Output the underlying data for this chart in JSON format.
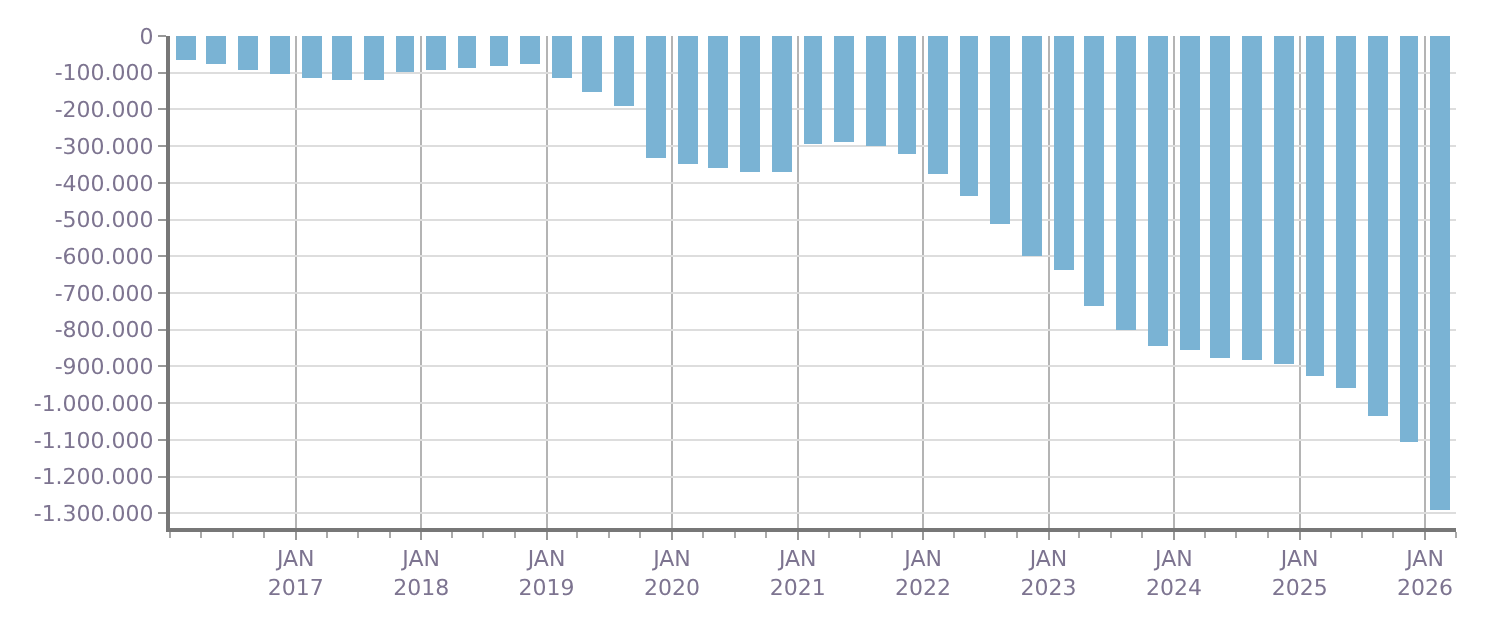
{
  "chart_data": {
    "type": "bar",
    "color": "#7ab3d4",
    "grid": true,
    "x": [
      "2016-02-15",
      "2016-05-15",
      "2016-08-15",
      "2016-11-15",
      "2017-02-15",
      "2017-05-15",
      "2017-08-15",
      "2017-11-15",
      "2018-02-15",
      "2018-05-15",
      "2018-08-15",
      "2018-11-15",
      "2019-02-15",
      "2019-05-15",
      "2019-08-15",
      "2019-11-15",
      "2020-02-15",
      "2020-05-15",
      "2020-08-15",
      "2020-11-15",
      "2021-02-15",
      "2021-05-15",
      "2021-08-15",
      "2021-11-15",
      "2022-02-15",
      "2022-05-15",
      "2022-08-15",
      "2022-11-15",
      "2023-02-15",
      "2023-05-15",
      "2023-08-15",
      "2023-11-15",
      "2024-02-15",
      "2024-05-15",
      "2024-08-15",
      "2024-11-15",
      "2025-02-15",
      "2025-05-15",
      "2025-08-15",
      "2025-11-15",
      "2026-02-15"
    ],
    "values": [
      -63000,
      -75000,
      -90000,
      -103000,
      -115000,
      -118000,
      -118000,
      -100000,
      -90000,
      -85000,
      -80000,
      -75000,
      -115000,
      -150000,
      -190000,
      -330000,
      -350000,
      -360000,
      -370000,
      -370000,
      -295000,
      -290000,
      -300000,
      -320000,
      -375000,
      -435000,
      -510000,
      -600000,
      -640000,
      -733000,
      -800000,
      -845000,
      -855000,
      -875000,
      -885000,
      -895000,
      -925000,
      -960000,
      -1035000,
      -1105000,
      -1290000
    ],
    "xlim": [
      "2016-01-01",
      "2026-04-01"
    ],
    "xticks": [
      {
        "value": "2017-01-01",
        "label": "JAN\n2017"
      },
      {
        "value": "2018-01-01",
        "label": "JAN\n2018"
      },
      {
        "value": "2019-01-01",
        "label": "JAN\n2019"
      },
      {
        "value": "2020-01-01",
        "label": "JAN\n2020"
      },
      {
        "value": "2021-01-01",
        "label": "JAN\n2021"
      },
      {
        "value": "2022-01-01",
        "label": "JAN\n2022"
      },
      {
        "value": "2023-01-01",
        "label": "JAN\n2023"
      },
      {
        "value": "2024-01-01",
        "label": "JAN\n2024"
      },
      {
        "value": "2025-01-01",
        "label": "JAN\n2025"
      },
      {
        "value": "2026-01-01",
        "label": "JAN\n2026"
      }
    ],
    "ylim": [
      -1340000,
      0
    ],
    "yticks": [
      0,
      {
        "value": -100000,
        "label": "-100.000"
      },
      {
        "value": -200000,
        "label": "-200.000"
      },
      {
        "value": -300000,
        "label": "-300.000"
      },
      {
        "value": -400000,
        "label": "-400.000"
      },
      {
        "value": -500000,
        "label": "-500.000"
      },
      {
        "value": -600000,
        "label": "-600.000"
      },
      {
        "value": -700000,
        "label": "-700.000"
      },
      {
        "value": -800000,
        "label": "-800.000"
      },
      {
        "value": -900000,
        "label": "-900.000"
      },
      {
        "value": -1000000,
        "label": "-1.000.000"
      },
      {
        "value": -1100000,
        "label": "-1.100.000"
      },
      {
        "value": -1200000,
        "label": "-1.200.000"
      },
      {
        "value": -1300000,
        "label": "-1.300.000"
      }
    ]
  }
}
